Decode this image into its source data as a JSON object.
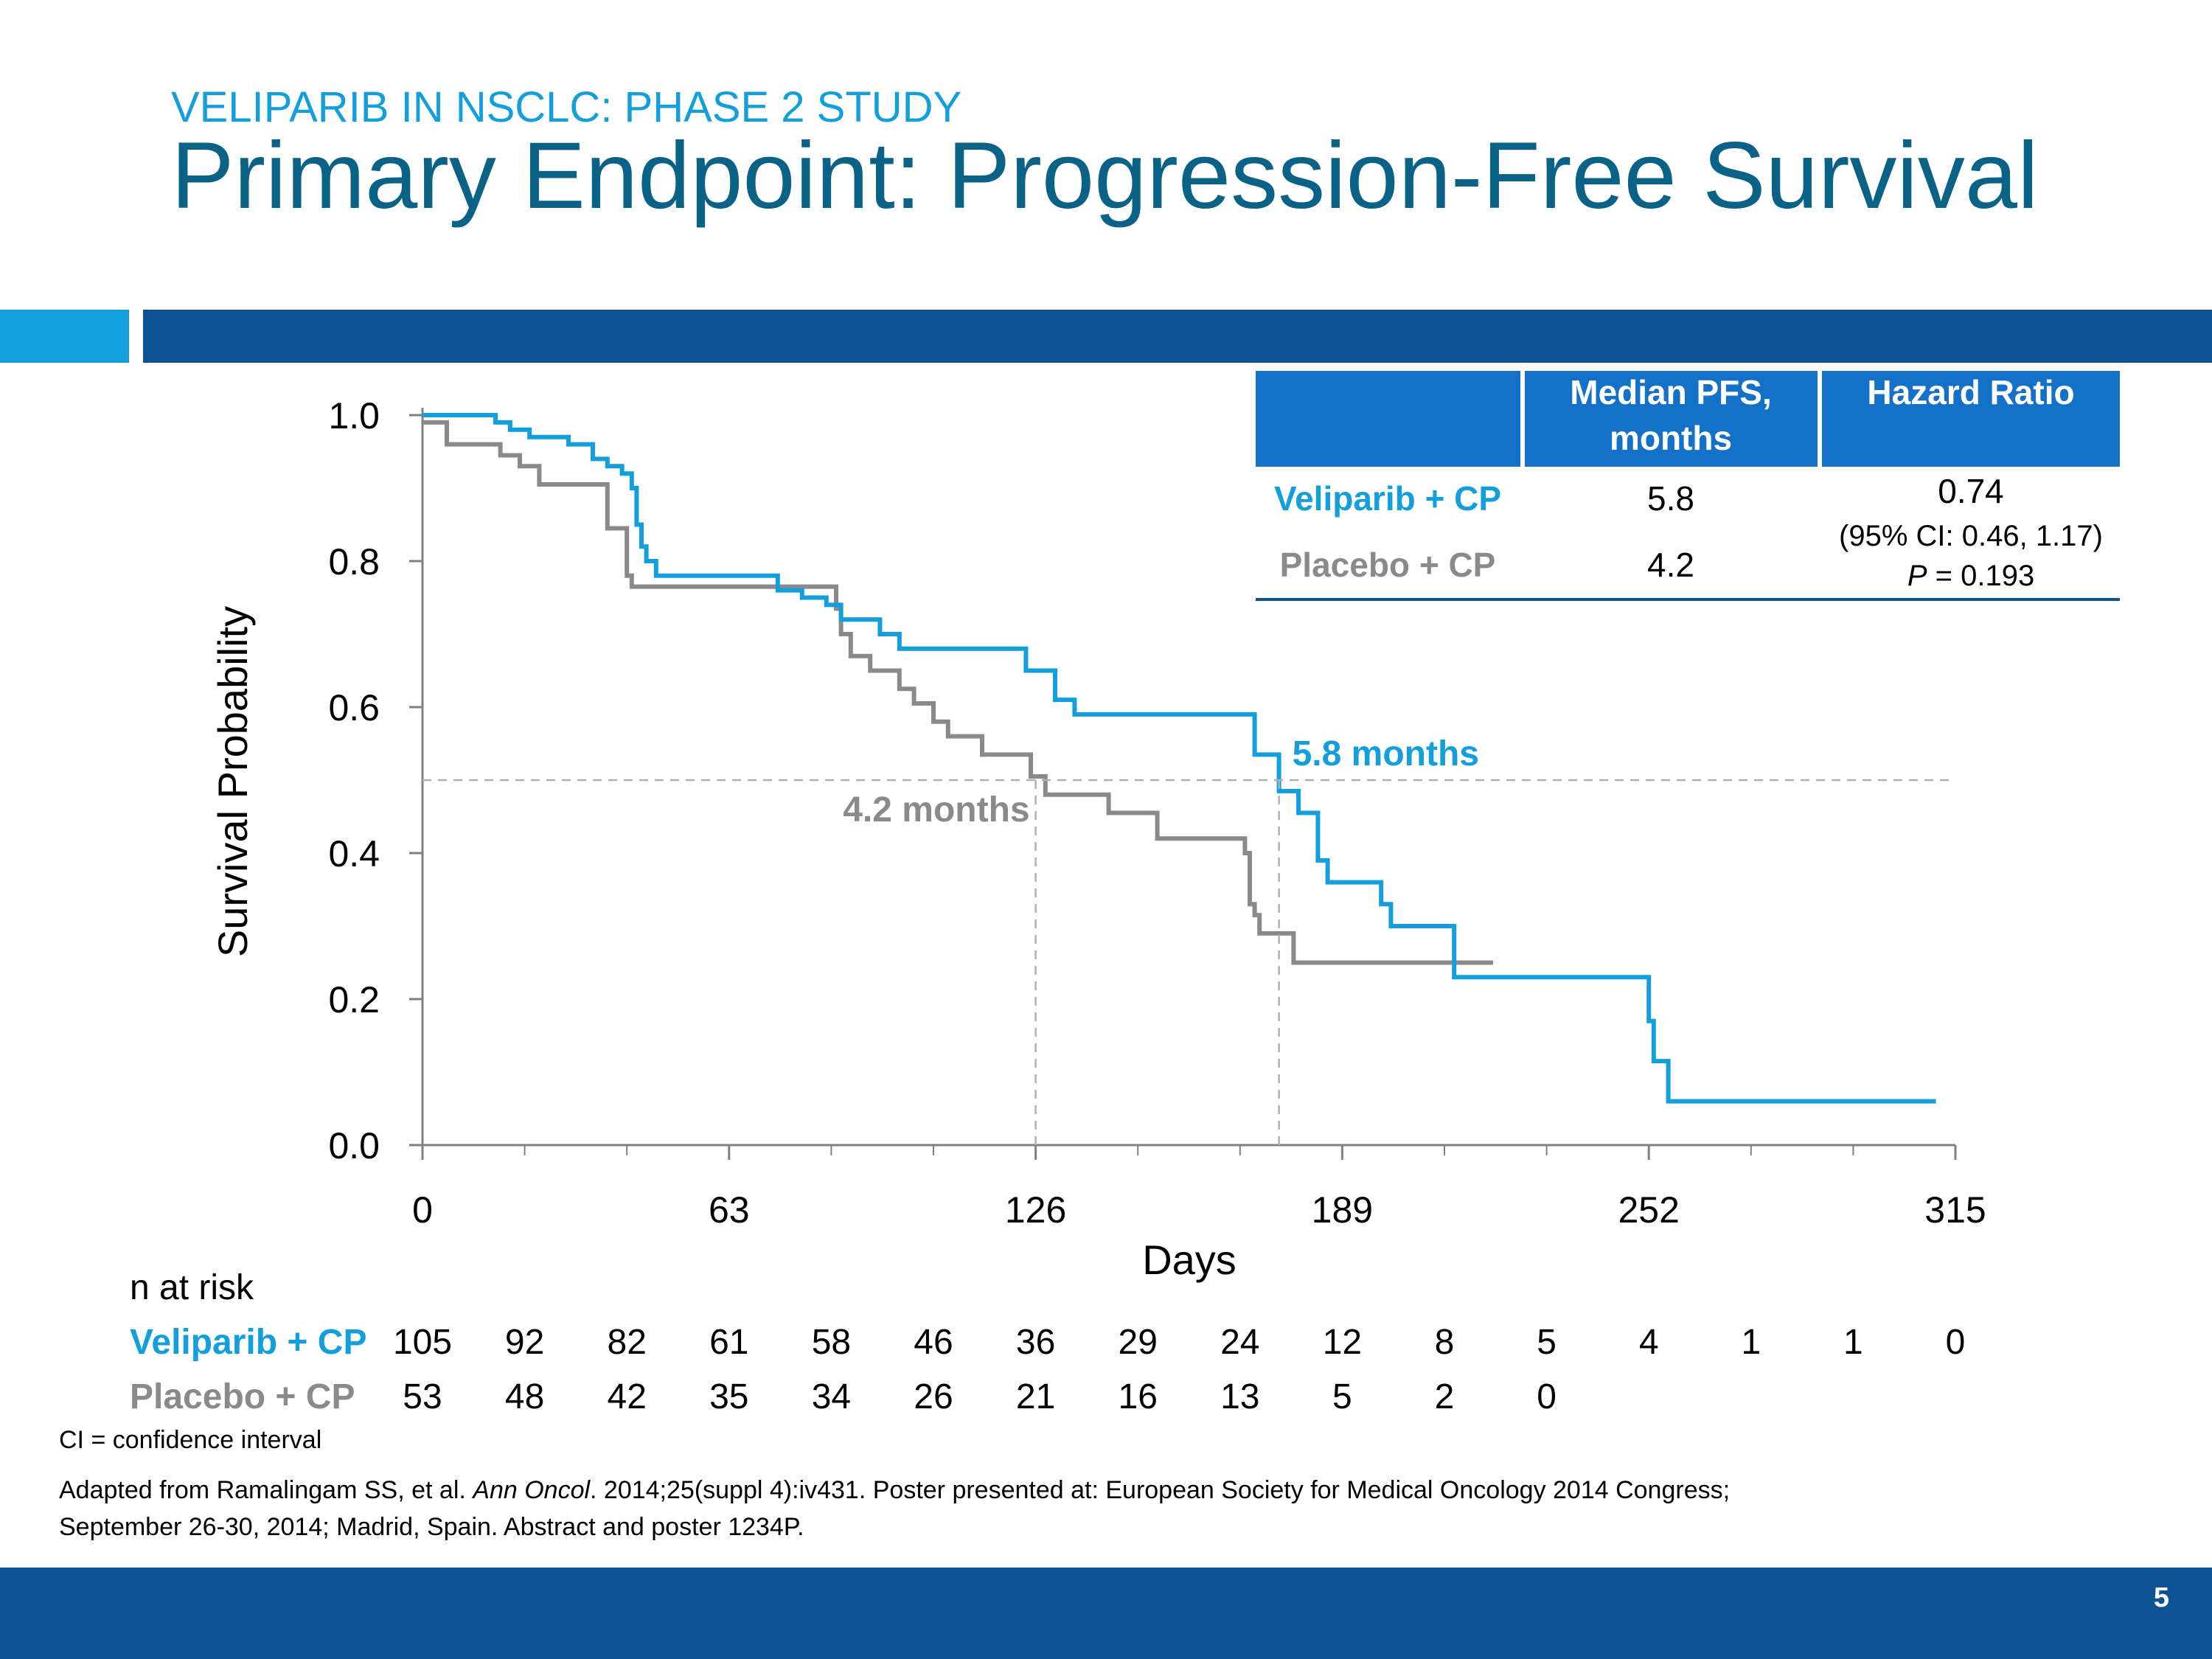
{
  "header": {
    "subtitle": "VELIPARIB IN NSCLC: PHASE 2 STUDY",
    "title": "Primary Endpoint: Progression-Free Survival"
  },
  "colors": {
    "veliparib": "#129fdc",
    "placebo": "#8a8a8a",
    "header_blue": "#0d5394",
    "table_header": "#1371c8",
    "title_teal": "#0a6287"
  },
  "summary_table": {
    "col_median": [
      "Median PFS,",
      "months"
    ],
    "col_hazard": "Hazard Ratio",
    "rows": [
      {
        "arm": "Veliparib + CP",
        "median": "5.8"
      },
      {
        "arm": "Placebo + CP",
        "median": "4.2"
      }
    ],
    "hazard_ratio": "0.74",
    "ci": "(95% CI: 0.46, 1.17)",
    "p_label": "P",
    "p_value": " = 0.193"
  },
  "chart_data": {
    "type": "line",
    "subtype": "kaplan-meier",
    "xlabel": "Days",
    "ylabel": "Survival Probability",
    "xlim": [
      0,
      315
    ],
    "ylim": [
      0,
      1.0
    ],
    "x_ticks": [
      "0",
      "63",
      "126",
      "189",
      "252",
      "315"
    ],
    "x_tick_values": [
      0,
      63,
      126,
      189,
      252,
      315
    ],
    "y_ticks": [
      "0.0",
      "0.2",
      "0.4",
      "0.6",
      "0.8",
      "1.0"
    ],
    "y_tick_values": [
      0,
      0.2,
      0.4,
      0.6,
      0.8,
      1.0
    ],
    "minor_x_ticks": [
      21,
      42,
      84,
      105,
      147,
      168,
      210,
      231,
      273,
      294
    ],
    "median_reference_y": 0.5,
    "series": [
      {
        "name": "Veliparib + CP",
        "color": "#129fdc",
        "steps": [
          [
            0,
            1.0
          ],
          [
            15,
            0.99
          ],
          [
            18,
            0.98
          ],
          [
            22,
            0.97
          ],
          [
            30,
            0.96
          ],
          [
            35,
            0.94
          ],
          [
            38,
            0.93
          ],
          [
            41,
            0.92
          ],
          [
            43,
            0.9
          ],
          [
            44,
            0.85
          ],
          [
            45,
            0.82
          ],
          [
            46,
            0.8
          ],
          [
            48,
            0.78
          ],
          [
            73,
            0.76
          ],
          [
            78,
            0.75
          ],
          [
            83,
            0.74
          ],
          [
            86,
            0.72
          ],
          [
            94,
            0.7
          ],
          [
            98,
            0.68
          ],
          [
            124,
            0.65
          ],
          [
            130,
            0.61
          ],
          [
            134,
            0.59
          ],
          [
            171,
            0.535
          ],
          [
            176,
            0.485
          ],
          [
            180,
            0.455
          ],
          [
            184,
            0.39
          ],
          [
            186,
            0.36
          ],
          [
            197,
            0.33
          ],
          [
            199,
            0.3
          ],
          [
            212,
            0.23
          ],
          [
            252,
            0.17
          ],
          [
            253,
            0.115
          ],
          [
            256,
            0.06
          ],
          [
            311,
            0.06
          ]
        ]
      },
      {
        "name": "Placebo + CP",
        "color": "#8a8a8a",
        "steps": [
          [
            0,
            0.99
          ],
          [
            5,
            0.96
          ],
          [
            16,
            0.945
          ],
          [
            20,
            0.93
          ],
          [
            24,
            0.905
          ],
          [
            38,
            0.845
          ],
          [
            42,
            0.78
          ],
          [
            43,
            0.765
          ],
          [
            85,
            0.735
          ],
          [
            86,
            0.7
          ],
          [
            88,
            0.67
          ],
          [
            92,
            0.65
          ],
          [
            98,
            0.625
          ],
          [
            101,
            0.605
          ],
          [
            105,
            0.58
          ],
          [
            108,
            0.56
          ],
          [
            115,
            0.535
          ],
          [
            125,
            0.505
          ],
          [
            128,
            0.48
          ],
          [
            141,
            0.455
          ],
          [
            151,
            0.42
          ],
          [
            169,
            0.4
          ],
          [
            170,
            0.33
          ],
          [
            171,
            0.315
          ],
          [
            172,
            0.29
          ],
          [
            179,
            0.25
          ],
          [
            220,
            0.25
          ]
        ]
      }
    ],
    "annotations": [
      {
        "text": "5.8 months",
        "x": 176,
        "y": 0.5,
        "color": "#129fdc"
      },
      {
        "text": "4.2 months",
        "x": 126,
        "y": 0.5,
        "color": "#8a8a8a"
      }
    ],
    "risk_table": {
      "label": "n at risk",
      "x": [
        0,
        21,
        42,
        63,
        84,
        105,
        126,
        147,
        168,
        189,
        210,
        231,
        252,
        273,
        294,
        315
      ],
      "rows": [
        {
          "name": "Veliparib + CP",
          "values": [
            "105",
            "92",
            "82",
            "61",
            "58",
            "46",
            "36",
            "29",
            "24",
            "12",
            "8",
            "5",
            "4",
            "1",
            "1",
            "0"
          ]
        },
        {
          "name": "Placebo + CP",
          "values": [
            "53",
            "48",
            "42",
            "35",
            "34",
            "26",
            "21",
            "16",
            "13",
            "5",
            "2",
            "0"
          ]
        }
      ]
    }
  },
  "footnotes": {
    "ci": "CI = confidence interval",
    "ref_part1": "Adapted from Ramalingam SS, et al. ",
    "ref_journal": "Ann Oncol",
    "ref_part2": ". 2014;25(suppl 4):iv431. Poster presented at: European Society for Medical Oncology 2014 Congress;",
    "ref_line2": "September 26-30, 2014; Madrid, Spain. Abstract and poster 1234P."
  },
  "page_number": "5"
}
